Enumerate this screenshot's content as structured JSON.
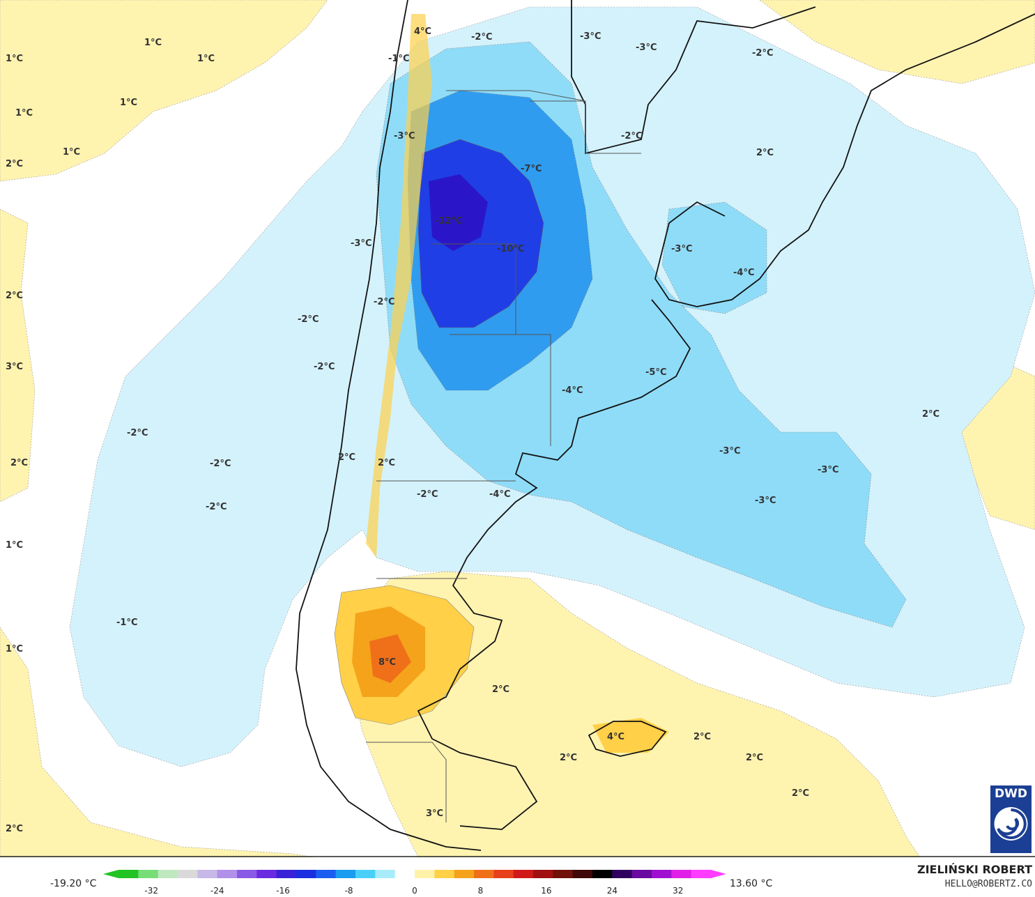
{
  "map": {
    "labels": [
      {
        "text": "4°C"
      },
      {
        "text": "-2°C"
      },
      {
        "text": "-3°C"
      },
      {
        "text": "-3°C"
      },
      {
        "text": "-2°C"
      },
      {
        "text": "1°C"
      },
      {
        "text": "1°C"
      },
      {
        "text": "-1°C"
      },
      {
        "text": "1°C"
      },
      {
        "text": "1°C"
      },
      {
        "text": "1°C"
      },
      {
        "text": "-3°C"
      },
      {
        "text": "1°C"
      },
      {
        "text": "-7°C"
      },
      {
        "text": "-2°C"
      },
      {
        "text": "2°C"
      },
      {
        "text": "-12°C"
      },
      {
        "text": "-3°C"
      },
      {
        "text": "-10°C"
      },
      {
        "text": "-3°C"
      },
      {
        "text": "-4°C"
      },
      {
        "text": "2°C"
      },
      {
        "text": "2°C"
      },
      {
        "text": "-2°C"
      },
      {
        "text": "3°C"
      },
      {
        "text": "-2°C"
      },
      {
        "text": "-5°C"
      },
      {
        "text": "-4°C"
      },
      {
        "text": "2°C"
      },
      {
        "text": "-2°C"
      },
      {
        "text": "-3°C"
      },
      {
        "text": "-3°C"
      },
      {
        "text": "2°C"
      },
      {
        "text": "-2°C"
      },
      {
        "text": "2°C"
      },
      {
        "text": "2°C"
      },
      {
        "text": "-2°C"
      },
      {
        "text": "-4°C"
      },
      {
        "text": "-3°C"
      },
      {
        "text": "-2°C"
      },
      {
        "text": "1°C"
      },
      {
        "text": "-2°C"
      },
      {
        "text": "-1°C"
      },
      {
        "text": "1°C"
      },
      {
        "text": "8°C"
      },
      {
        "text": "2°C"
      },
      {
        "text": "4°C"
      },
      {
        "text": "2°C"
      },
      {
        "text": "2°C"
      },
      {
        "text": "2°C"
      },
      {
        "text": "2°C"
      },
      {
        "text": "2°C"
      },
      {
        "text": "3°C"
      }
    ]
  },
  "colorbar": {
    "min_label": "-19.20 °C",
    "max_label": "13.60 °C",
    "ticks": [
      "-32",
      "-24",
      "-16",
      "-8",
      "0",
      "8",
      "16",
      "24",
      "32"
    ],
    "tick_values": [
      -32,
      -24,
      -16,
      -8,
      0,
      8,
      16,
      24,
      32
    ],
    "range": [
      -36,
      36
    ],
    "colors": [
      "#22c322",
      "#77dd77",
      "#bfe8bf",
      "#d9d9d9",
      "#c8b8e8",
      "#b090e8",
      "#8a5ae6",
      "#6a2ae0",
      "#3a22d8",
      "#1a2ee0",
      "#1a5ef0",
      "#1a9cf0",
      "#4ad0f8",
      "#a8ecfc",
      "#ffffff",
      "#fff2a8",
      "#ffd048",
      "#f5a31a",
      "#f0701a",
      "#e8401a",
      "#d01818",
      "#a01010",
      "#701008",
      "#400808",
      "#000000",
      "#300060",
      "#6a0aa0",
      "#a010d0",
      "#e020e8",
      "#ff3cff"
    ]
  },
  "logo": {
    "text": "DWD",
    "color": "#1b3f94"
  },
  "author": {
    "name": "ZIELIŃSKI ROBERT",
    "email": "HELLO@ROBERTZ.CO"
  }
}
